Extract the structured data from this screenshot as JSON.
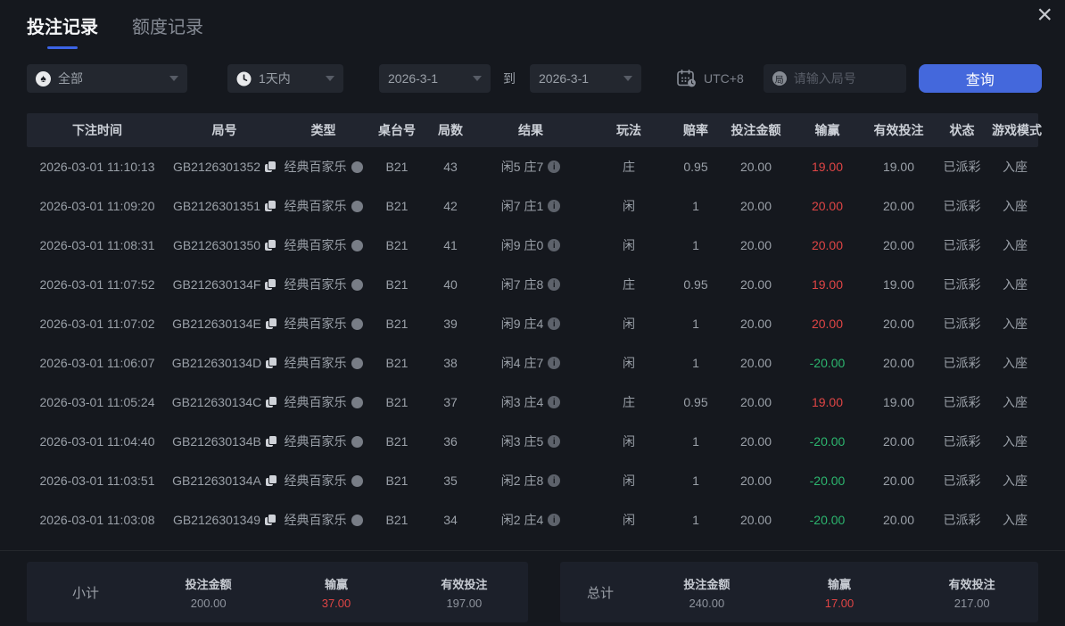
{
  "window": {
    "close_icon": "×"
  },
  "tabs": [
    {
      "label": "投注记录",
      "active": true
    },
    {
      "label": "额度记录",
      "active": false
    }
  ],
  "filters": {
    "game_type": {
      "value": "全部",
      "icon": "spade"
    },
    "time_range": {
      "value": "1天内",
      "icon": "clock"
    },
    "date_from": "2026-3-1",
    "to_label": "到",
    "date_to": "2026-3-1",
    "timezone_icon": "calendar-clock",
    "timezone": "UTC+8",
    "round_input_icon": "局",
    "round_input_placeholder": "请输入局号",
    "query_button": "查询"
  },
  "icons": {
    "spade": "♠",
    "copy": "copy",
    "detail": "gray-dot",
    "info": "i",
    "caret": "triangle-down"
  },
  "colors": {
    "accent_blue": "#4468dc",
    "tab_underline": "#3c64e6",
    "win_red": "#e04545",
    "loss_green": "#2cb56e",
    "background": "#15181e",
    "header_bg": "#21252f",
    "panel_bg": "#1c202a"
  },
  "table": {
    "headers": [
      "下注时间",
      "局号",
      "类型",
      "桌台号",
      "局数",
      "结果",
      "玩法",
      "赔率",
      "投注金额",
      "输赢",
      "有效投注",
      "状态",
      "游戏模式"
    ],
    "rows": [
      {
        "time": "2026-03-01 11:10:13",
        "round_id": "GB2126301352",
        "type": "经典百家乐",
        "table": "B21",
        "round": "43",
        "result": "闲5 庄7",
        "play": "庄",
        "odds": "0.95",
        "bet": "20.00",
        "win": "19.00",
        "valid": "19.00",
        "status": "已派彩",
        "mode": "入座"
      },
      {
        "time": "2026-03-01 11:09:20",
        "round_id": "GB2126301351",
        "type": "经典百家乐",
        "table": "B21",
        "round": "42",
        "result": "闲7 庄1",
        "play": "闲",
        "odds": "1",
        "bet": "20.00",
        "win": "20.00",
        "valid": "20.00",
        "status": "已派彩",
        "mode": "入座"
      },
      {
        "time": "2026-03-01 11:08:31",
        "round_id": "GB2126301350",
        "type": "经典百家乐",
        "table": "B21",
        "round": "41",
        "result": "闲9 庄0",
        "play": "闲",
        "odds": "1",
        "bet": "20.00",
        "win": "20.00",
        "valid": "20.00",
        "status": "已派彩",
        "mode": "入座"
      },
      {
        "time": "2026-03-01 11:07:52",
        "round_id": "GB212630134F",
        "type": "经典百家乐",
        "table": "B21",
        "round": "40",
        "result": "闲7 庄8",
        "play": "庄",
        "odds": "0.95",
        "bet": "20.00",
        "win": "19.00",
        "valid": "19.00",
        "status": "已派彩",
        "mode": "入座"
      },
      {
        "time": "2026-03-01 11:07:02",
        "round_id": "GB212630134E",
        "type": "经典百家乐",
        "table": "B21",
        "round": "39",
        "result": "闲9 庄4",
        "play": "闲",
        "odds": "1",
        "bet": "20.00",
        "win": "20.00",
        "valid": "20.00",
        "status": "已派彩",
        "mode": "入座"
      },
      {
        "time": "2026-03-01 11:06:07",
        "round_id": "GB212630134D",
        "type": "经典百家乐",
        "table": "B21",
        "round": "38",
        "result": "闲4 庄7",
        "play": "闲",
        "odds": "1",
        "bet": "20.00",
        "win": "-20.00",
        "valid": "20.00",
        "status": "已派彩",
        "mode": "入座"
      },
      {
        "time": "2026-03-01 11:05:24",
        "round_id": "GB212630134C",
        "type": "经典百家乐",
        "table": "B21",
        "round": "37",
        "result": "闲3 庄4",
        "play": "庄",
        "odds": "0.95",
        "bet": "20.00",
        "win": "19.00",
        "valid": "19.00",
        "status": "已派彩",
        "mode": "入座"
      },
      {
        "time": "2026-03-01 11:04:40",
        "round_id": "GB212630134B",
        "type": "经典百家乐",
        "table": "B21",
        "round": "36",
        "result": "闲3 庄5",
        "play": "闲",
        "odds": "1",
        "bet": "20.00",
        "win": "-20.00",
        "valid": "20.00",
        "status": "已派彩",
        "mode": "入座"
      },
      {
        "time": "2026-03-01 11:03:51",
        "round_id": "GB212630134A",
        "type": "经典百家乐",
        "table": "B21",
        "round": "35",
        "result": "闲2 庄8",
        "play": "闲",
        "odds": "1",
        "bet": "20.00",
        "win": "-20.00",
        "valid": "20.00",
        "status": "已派彩",
        "mode": "入座"
      },
      {
        "time": "2026-03-01 11:03:08",
        "round_id": "GB2126301349",
        "type": "经典百家乐",
        "table": "B21",
        "round": "34",
        "result": "闲2 庄4",
        "play": "闲",
        "odds": "1",
        "bet": "20.00",
        "win": "-20.00",
        "valid": "20.00",
        "status": "已派彩",
        "mode": "入座"
      }
    ]
  },
  "summary": {
    "subtotal": {
      "label": "小计",
      "bet_label": "投注金额",
      "bet": "200.00",
      "win_label": "输赢",
      "win": "37.00",
      "valid_label": "有效投注",
      "valid": "197.00"
    },
    "total": {
      "label": "总计",
      "bet_label": "投注金额",
      "bet": "240.00",
      "win_label": "输赢",
      "win": "17.00",
      "valid_label": "有效投注",
      "valid": "217.00"
    }
  }
}
